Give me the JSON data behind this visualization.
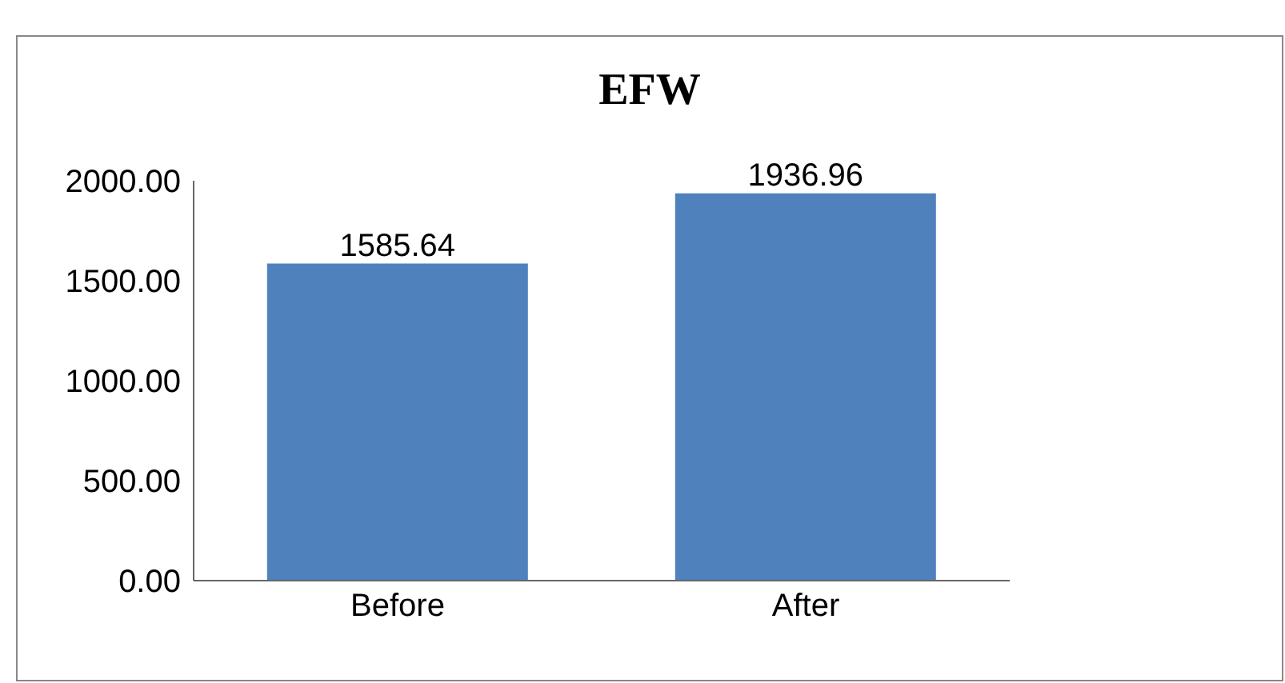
{
  "chart_data": {
    "type": "bar",
    "title": "EFW",
    "categories": [
      "Before",
      "After"
    ],
    "values": [
      1585.64,
      1936.96
    ],
    "color": "#4f81bd",
    "ylim": [
      0,
      2000
    ],
    "yticks": [
      {
        "value": 0,
        "label": "0.00"
      },
      {
        "value": 500,
        "label": "500.00"
      },
      {
        "value": 1000,
        "label": "1000.00"
      },
      {
        "value": 1500,
        "label": "1500.00"
      },
      {
        "value": 2000,
        "label": "2000.00"
      }
    ],
    "data_labels": true,
    "grid": false,
    "legend": false
  }
}
